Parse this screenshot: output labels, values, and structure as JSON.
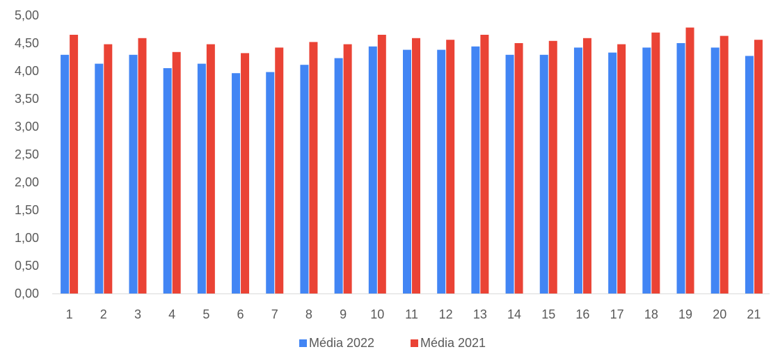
{
  "chart_data": {
    "type": "bar",
    "title": "",
    "xlabel": "",
    "ylabel": "",
    "categories": [
      "1",
      "2",
      "3",
      "4",
      "5",
      "6",
      "7",
      "8",
      "9",
      "10",
      "11",
      "12",
      "13",
      "14",
      "15",
      "16",
      "17",
      "18",
      "19",
      "20",
      "21"
    ],
    "series": [
      {
        "name": "Média 2022",
        "color": "#4285f4",
        "values": [
          4.29,
          4.13,
          4.29,
          4.05,
          4.13,
          3.96,
          3.98,
          4.11,
          4.23,
          4.44,
          4.38,
          4.38,
          4.44,
          4.29,
          4.29,
          4.42,
          4.33,
          4.42,
          4.5,
          4.42,
          4.27
        ]
      },
      {
        "name": "Média 2021",
        "color": "#ea4335",
        "values": [
          4.65,
          4.48,
          4.59,
          4.34,
          4.48,
          4.32,
          4.42,
          4.52,
          4.48,
          4.65,
          4.59,
          4.56,
          4.65,
          4.5,
          4.54,
          4.59,
          4.48,
          4.69,
          4.78,
          4.63,
          4.56
        ]
      }
    ],
    "ylim": [
      0,
      5
    ],
    "yticks": [
      "0,00",
      "0,50",
      "1,00",
      "1,50",
      "2,00",
      "2,50",
      "3,00",
      "3,50",
      "4,00",
      "4,50",
      "5,00"
    ],
    "grid": false,
    "legend_position": "bottom"
  }
}
